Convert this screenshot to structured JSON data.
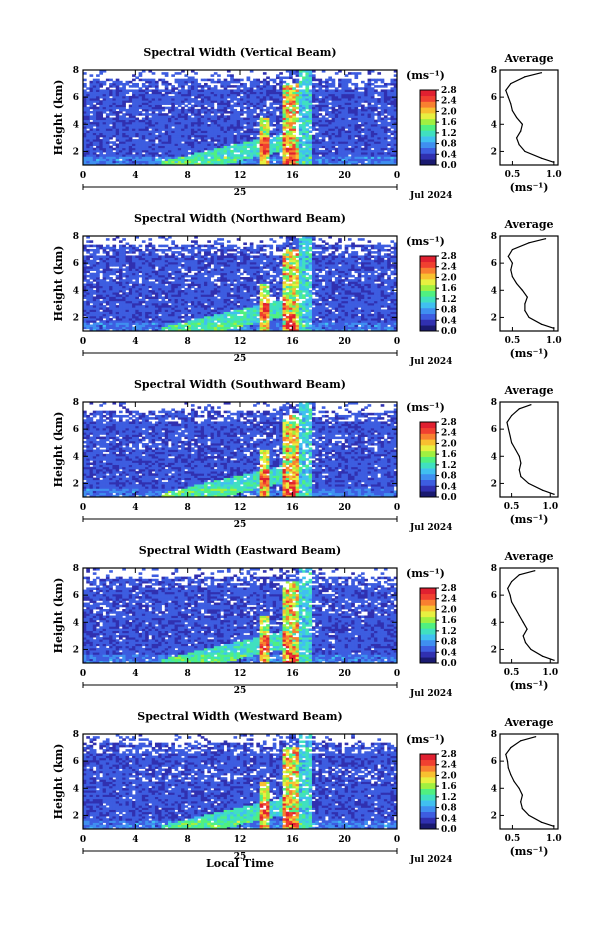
{
  "figure": {
    "local_time_label": "Local Time",
    "date_label": "Jul 2024",
    "day_label": "25",
    "cbar_unit": "(ms⁻¹)",
    "avg_title": "Average",
    "avg_unit": "(ms⁻¹)",
    "height_label": "Height (km)"
  },
  "colors": {
    "palette": [
      "#1a1a70",
      "#3030b0",
      "#3d5de0",
      "#3f8ff0",
      "#40c0f0",
      "#40e0c0",
      "#50f080",
      "#a0f040",
      "#e8f040",
      "#f8c030",
      "#f88030",
      "#f04030",
      "#e02030"
    ]
  },
  "chart_data": [
    {
      "type": "heatmap",
      "title": "Spectral Width (Vertical Beam)",
      "xlabel": "",
      "ylabel": "Height (km)",
      "x_ticks": [
        "0",
        "4",
        "8",
        "12",
        "16",
        "20",
        "0"
      ],
      "y_ticks": [
        "2",
        "4",
        "6",
        "8"
      ],
      "xlim": [
        0,
        24
      ],
      "ylim": [
        1,
        8
      ],
      "colorbar": {
        "unit": "(ms⁻¹)",
        "ticks": [
          "0.0",
          "0.4",
          "0.8",
          "1.2",
          "1.6",
          "2.0",
          "2.4",
          "2.8"
        ],
        "range": [
          0.0,
          2.8
        ]
      },
      "average_profile": {
        "title": "Average",
        "xlabel": "(ms⁻¹)",
        "x_ticks": [
          "0.5",
          "1.0"
        ],
        "y_ticks": [
          "2",
          "4",
          "6",
          "8"
        ],
        "xlim": [
          0.35,
          1.05
        ],
        "ylim": [
          1,
          8
        ],
        "heights": [
          1.2,
          1.5,
          2.0,
          2.5,
          3.0,
          3.5,
          4.0,
          4.5,
          5.0,
          5.5,
          6.0,
          6.5,
          7.0,
          7.5,
          7.8
        ],
        "values": [
          1.0,
          0.85,
          0.65,
          0.58,
          0.55,
          0.6,
          0.62,
          0.55,
          0.5,
          0.48,
          0.45,
          0.42,
          0.48,
          0.65,
          0.85
        ]
      }
    },
    {
      "type": "heatmap",
      "title": "Spectral Width (Northward Beam)",
      "xlabel": "",
      "ylabel": "Height (km)",
      "x_ticks": [
        "0",
        "4",
        "8",
        "12",
        "16",
        "20",
        "0"
      ],
      "y_ticks": [
        "2",
        "4",
        "6",
        "8"
      ],
      "xlim": [
        0,
        24
      ],
      "ylim": [
        1,
        8
      ],
      "colorbar": {
        "unit": "(ms⁻¹)",
        "ticks": [
          "0.0",
          "0.4",
          "0.8",
          "1.2",
          "1.6",
          "2.0",
          "2.4",
          "2.8"
        ],
        "range": [
          0.0,
          2.8
        ]
      },
      "average_profile": {
        "title": "Average",
        "xlabel": "(ms⁻¹)",
        "x_ticks": [
          "0.5",
          "1.0"
        ],
        "y_ticks": [
          "2",
          "4",
          "6",
          "8"
        ],
        "xlim": [
          0.35,
          1.05
        ],
        "ylim": [
          1,
          8
        ],
        "heights": [
          1.2,
          1.5,
          2.0,
          2.5,
          3.0,
          3.5,
          4.0,
          4.5,
          5.0,
          5.5,
          6.0,
          6.5,
          7.0,
          7.5,
          7.8
        ],
        "values": [
          1.0,
          0.85,
          0.7,
          0.65,
          0.65,
          0.68,
          0.62,
          0.55,
          0.5,
          0.48,
          0.5,
          0.45,
          0.5,
          0.7,
          0.9
        ]
      }
    },
    {
      "type": "heatmap",
      "title": "Spectral Width (Southward Beam)",
      "xlabel": "",
      "ylabel": "Height (km)",
      "x_ticks": [
        "0",
        "4",
        "8",
        "12",
        "16",
        "20",
        "0"
      ],
      "y_ticks": [
        "2",
        "4",
        "6",
        "8"
      ],
      "xlim": [
        0,
        24
      ],
      "ylim": [
        1,
        8
      ],
      "colorbar": {
        "unit": "(ms⁻¹)",
        "ticks": [
          "0.0",
          "0.4",
          "0.8",
          "1.2",
          "1.6",
          "2.0",
          "2.4",
          "2.8"
        ],
        "range": [
          0.0,
          2.8
        ]
      },
      "average_profile": {
        "title": "Average",
        "xlabel": "(ms⁻¹)",
        "x_ticks": [
          "0.5",
          "1.0"
        ],
        "y_ticks": [
          "2",
          "4",
          "6",
          "8"
        ],
        "xlim": [
          0.35,
          1.1
        ],
        "ylim": [
          1,
          8
        ],
        "heights": [
          1.2,
          1.5,
          2.0,
          2.5,
          3.0,
          3.5,
          4.0,
          4.5,
          5.0,
          5.5,
          6.0,
          6.5,
          7.0,
          7.5,
          7.8
        ],
        "values": [
          1.05,
          0.9,
          0.72,
          0.62,
          0.6,
          0.62,
          0.6,
          0.55,
          0.5,
          0.48,
          0.46,
          0.44,
          0.5,
          0.6,
          0.75
        ]
      }
    },
    {
      "type": "heatmap",
      "title": "Spectral Width (Eastward Beam)",
      "xlabel": "",
      "ylabel": "Height (km)",
      "x_ticks": [
        "0",
        "4",
        "8",
        "12",
        "16",
        "20",
        "0"
      ],
      "y_ticks": [
        "2",
        "4",
        "6",
        "8"
      ],
      "xlim": [
        0,
        24
      ],
      "ylim": [
        1,
        8
      ],
      "colorbar": {
        "unit": "(ms⁻¹)",
        "ticks": [
          "0.0",
          "0.4",
          "0.8",
          "1.2",
          "1.6",
          "2.0",
          "2.4",
          "2.8"
        ],
        "range": [
          0.0,
          2.8
        ]
      },
      "average_profile": {
        "title": "Average",
        "xlabel": "(ms⁻¹)",
        "x_ticks": [
          "0.5",
          "1.0"
        ],
        "y_ticks": [
          "2",
          "4",
          "6",
          "8"
        ],
        "xlim": [
          0.35,
          1.1
        ],
        "ylim": [
          1,
          8
        ],
        "heights": [
          1.2,
          1.5,
          2.0,
          2.5,
          3.0,
          3.5,
          4.0,
          4.5,
          5.0,
          5.5,
          6.0,
          6.5,
          7.0,
          7.5,
          7.8
        ],
        "values": [
          1.05,
          0.9,
          0.75,
          0.68,
          0.65,
          0.7,
          0.65,
          0.6,
          0.55,
          0.5,
          0.48,
          0.45,
          0.5,
          0.6,
          0.8
        ]
      }
    },
    {
      "type": "heatmap",
      "title": "Spectral Width (Westward Beam)",
      "xlabel": "Local Time",
      "ylabel": "Height (km)",
      "x_ticks": [
        "0",
        "4",
        "8",
        "12",
        "16",
        "20",
        "0"
      ],
      "y_ticks": [
        "2",
        "4",
        "6",
        "8"
      ],
      "xlim": [
        0,
        24
      ],
      "ylim": [
        1,
        8
      ],
      "colorbar": {
        "unit": "(ms⁻¹)",
        "ticks": [
          "0.0",
          "0.4",
          "0.8",
          "1.2",
          "1.6",
          "2.0",
          "2.4",
          "2.8"
        ],
        "range": [
          0.0,
          2.8
        ]
      },
      "average_profile": {
        "title": "Average",
        "xlabel": "(ms⁻¹)",
        "x_ticks": [
          "0.5",
          "1.0"
        ],
        "y_ticks": [
          "2",
          "4",
          "6",
          "8"
        ],
        "xlim": [
          0.35,
          1.05
        ],
        "ylim": [
          1,
          8
        ],
        "heights": [
          1.2,
          1.5,
          2.0,
          2.5,
          3.0,
          3.5,
          4.0,
          4.5,
          5.0,
          5.5,
          6.0,
          6.5,
          7.0,
          7.5,
          7.8
        ],
        "values": [
          1.0,
          0.85,
          0.7,
          0.62,
          0.6,
          0.62,
          0.58,
          0.52,
          0.48,
          0.45,
          0.44,
          0.42,
          0.48,
          0.6,
          0.78
        ]
      }
    }
  ]
}
